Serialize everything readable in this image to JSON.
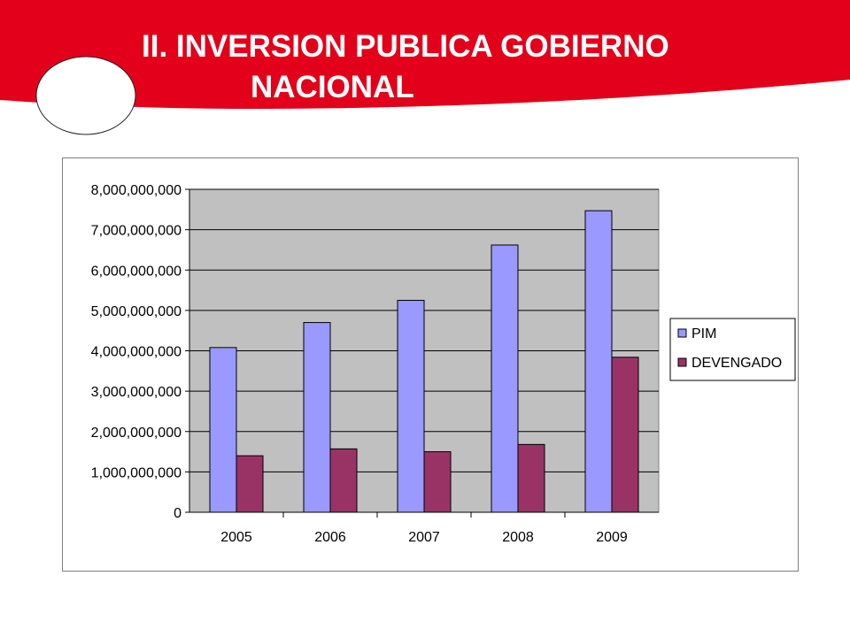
{
  "slide": {
    "title_line1": "II. INVERSION PUBLICA GOBIERNO",
    "title_line2": "NACIONAL",
    "colors": {
      "banner": "#e2001a",
      "oval_fill": "#ffffff"
    }
  },
  "chart_data": {
    "type": "bar",
    "title": "",
    "categories": [
      "2005",
      "2006",
      "2007",
      "2008",
      "2009"
    ],
    "series": [
      {
        "name": "PIM",
        "color": "#9999ff",
        "values": [
          4080000000,
          4700000000,
          5250000000,
          6620000000,
          7470000000
        ]
      },
      {
        "name": "DEVENGADO",
        "color": "#993366",
        "values": [
          1400000000,
          1570000000,
          1500000000,
          1680000000,
          3840000000
        ]
      }
    ],
    "ylim": [
      0,
      8000000000
    ],
    "yticks": [
      0,
      1000000000,
      2000000000,
      3000000000,
      4000000000,
      5000000000,
      6000000000,
      7000000000,
      8000000000
    ],
    "ytick_labels": [
      "0",
      "1,000,000,000",
      "2,000,000,000",
      "3,000,000,000",
      "4,000,000,000",
      "5,000,000,000",
      "6,000,000,000",
      "7,000,000,000",
      "8,000,000,000"
    ],
    "grid": true,
    "legend_position": "right",
    "plot_background": "#c0c0c0"
  }
}
